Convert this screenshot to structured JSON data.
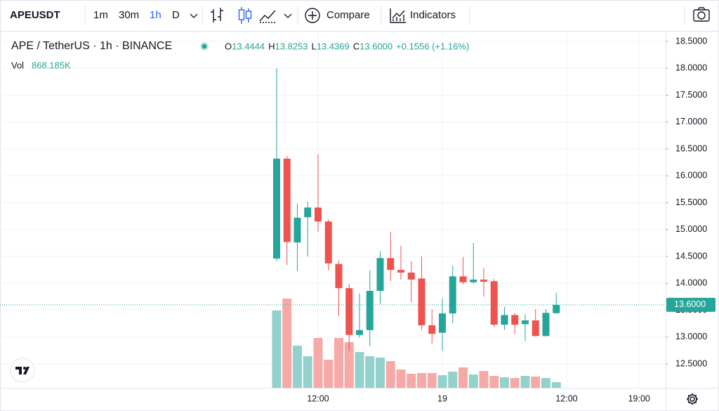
{
  "toolbar": {
    "symbol": "APEUSDT",
    "intervals": [
      "1m",
      "30m",
      "1h",
      "D"
    ],
    "active_interval": 2,
    "compare": "Compare",
    "indicators": "Indicators"
  },
  "chart_data": {
    "type": "candlestick",
    "legend": {
      "symbol": "APE / TetherUS · 1h · BINANCE",
      "ohlc": [
        {
          "label": "O",
          "value": "13.4444"
        },
        {
          "label": "H",
          "value": "13.8253"
        },
        {
          "label": "L",
          "value": "13.4369"
        },
        {
          "label": "C",
          "value": "13.6000"
        }
      ],
      "change": "+0.1556 (+1.16%)",
      "volume_label": "Vol",
      "volume": "868.185K"
    },
    "categories": [
      null,
      null,
      null,
      null,
      "12:00",
      null,
      null,
      null,
      null,
      null,
      null,
      null,
      null,
      null,
      null,
      null,
      "19",
      null,
      null,
      null,
      null,
      null,
      null,
      null,
      null,
      null,
      null,
      null,
      "12:00",
      null,
      null,
      null,
      null,
      null,
      null,
      "19:00"
    ],
    "open": [
      14.46,
      16.32,
      14.76,
      15.23,
      15.41,
      15.15,
      14.36,
      13.91,
      13.04,
      13.13,
      13.86,
      14.47,
      14.25,
      14.2,
      14.09,
      13.22,
      13.08,
      13.44,
      14.13,
      14.02,
      14.07,
      14.04,
      13.23,
      13.41,
      13.24,
      13.31,
      13.02,
      13.4444,
      null,
      null,
      null,
      null,
      null,
      null,
      null,
      null
    ],
    "high": [
      18.0,
      16.37,
      15.48,
      15.51,
      16.4,
      15.19,
      14.43,
      13.99,
      13.81,
      14.24,
      14.6,
      14.96,
      14.7,
      14.41,
      14.5,
      13.52,
      13.72,
      14.33,
      14.49,
      14.75,
      14.29,
      14.08,
      13.56,
      13.45,
      13.42,
      13.52,
      13.52,
      13.8253,
      null,
      null,
      null,
      null,
      null,
      null,
      null,
      null
    ],
    "low": [
      14.41,
      14.34,
      14.23,
      14.5,
      14.96,
      14.24,
      13.39,
      12.74,
      12.99,
      12.83,
      13.62,
      14.04,
      14.07,
      13.65,
      13.13,
      12.88,
      12.74,
      13.26,
      13.98,
      13.99,
      13.75,
      13.19,
      13.13,
      13.06,
      12.93,
      13.01,
      13.01,
      13.4369,
      null,
      null,
      null,
      null,
      null,
      null,
      null,
      null
    ],
    "close": [
      16.32,
      14.77,
      15.22,
      15.41,
      15.15,
      14.37,
      13.91,
      13.04,
      13.13,
      13.86,
      14.47,
      14.25,
      14.2,
      14.07,
      13.22,
      13.06,
      13.44,
      14.13,
      14.02,
      14.07,
      14.03,
      13.23,
      13.41,
      13.23,
      13.31,
      13.02,
      13.45,
      13.6,
      null,
      null,
      null,
      null,
      null,
      null,
      null,
      null
    ],
    "volume": [
      11940000,
      13780000,
      6510000,
      4880000,
      7700000,
      4340000,
      7700000,
      7050000,
      5530000,
      4880000,
      4670000,
      4120000,
      2820000,
      2170000,
      2280000,
      2280000,
      1950000,
      2500000,
      3150000,
      2060000,
      2600000,
      1840000,
      1630000,
      1520000,
      1840000,
      1740000,
      1520000,
      868185,
      null,
      null,
      null,
      null,
      null,
      null,
      null,
      null
    ],
    "up_color": "#26a69a",
    "down_color": "#ef5350",
    "volume_up_color": "#93d2cc",
    "volume_down_color": "#f7a9a7",
    "ylim": [
      12.056,
      18.683
    ],
    "volume_ylim": [
      0,
      55000000
    ],
    "yticks": [
      {
        "value": 12.5,
        "label": "12.5000"
      },
      {
        "value": 13.0,
        "label": "13.0000"
      },
      {
        "value": 13.5,
        "label": "13.5000"
      },
      {
        "value": 14.0,
        "label": "14.0000"
      },
      {
        "value": 14.5,
        "label": "14.5000"
      },
      {
        "value": 15.0,
        "label": "15.0000"
      },
      {
        "value": 15.5,
        "label": "15.5000"
      },
      {
        "value": 16.0,
        "label": "16.0000"
      },
      {
        "value": 16.5,
        "label": "16.5000"
      },
      {
        "value": 17.0,
        "label": "17.0000"
      },
      {
        "value": 17.5,
        "label": "17.5000"
      },
      {
        "value": 18.0,
        "label": "18.0000"
      },
      {
        "value": 18.5,
        "label": "18.5000"
      }
    ],
    "grid": true
  }
}
